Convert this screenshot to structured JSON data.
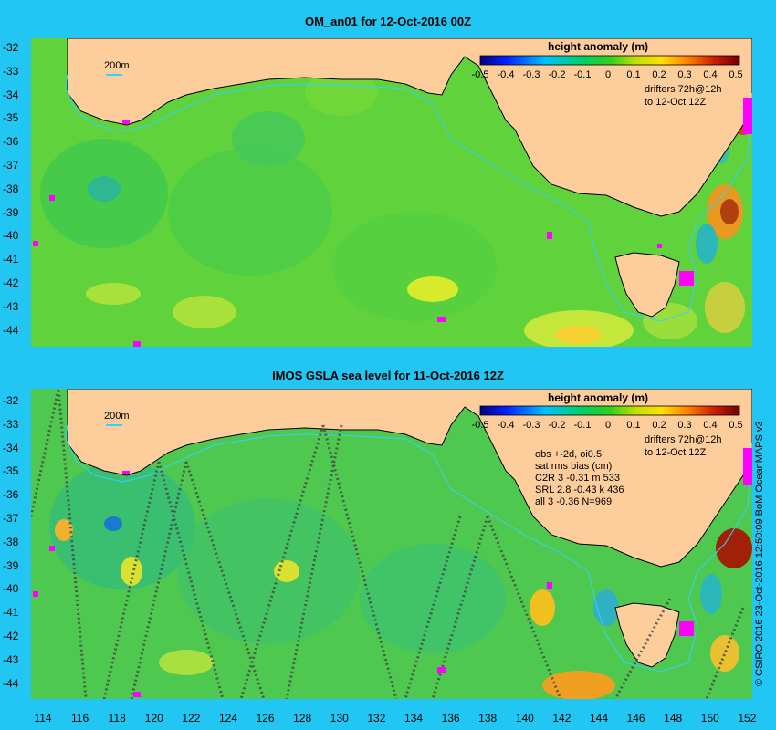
{
  "panels": [
    {
      "title": "OM_an01 for 12-Oct-2016 00Z",
      "scale_label": "200m",
      "colorbar_title": "height anomaly (m)",
      "colorbar_ticks": [
        "-0.5",
        "-0.4",
        "-0.3",
        "-0.2",
        "-0.1",
        "0",
        "0.1",
        "0.2",
        "0.3",
        "0.4",
        "0.5"
      ],
      "drifters_line1": "drifters 72h@12h",
      "drifters_line2": "to 12-Oct 12Z"
    },
    {
      "title": "IMOS GSLA sea level  for 11-Oct-2016 12Z",
      "scale_label": "200m",
      "colorbar_title": "height anomaly (m)",
      "colorbar_ticks": [
        "-0.5",
        "-0.4",
        "-0.3",
        "-0.2",
        "-0.1",
        "0",
        "0.1",
        "0.2",
        "0.3",
        "0.4",
        "0.5"
      ],
      "drifters_line1": "drifters 72h@12h",
      "drifters_line2": "to 12-Oct 12Z",
      "stats": [
        "obs +-2d, oi0.5",
        "sat rms bias (cm)",
        "C2R  3 -0.31 m 533",
        "SRL  2.8 -0.43 k 436",
        "all  3 -0.36 N=969"
      ]
    }
  ],
  "y_axis_labels": [
    "-32",
    "-33",
    "-34",
    "-35",
    "-36",
    "-37",
    "-38",
    "-39",
    "-40",
    "-41",
    "-42",
    "-43",
    "-44"
  ],
  "x_axis_labels": [
    "114",
    "116",
    "118",
    "120",
    "122",
    "124",
    "126",
    "128",
    "130",
    "132",
    "134",
    "136",
    "138",
    "140",
    "142",
    "144",
    "146",
    "148",
    "150",
    "152"
  ],
  "credit": "© CSIRO 2016  23-Oct-2016 12:50:09 BoM OceanMAPS v3",
  "colors": {
    "background": "#22c6f2",
    "land": "#fdcd9c",
    "ocean_base": "#5fd23c",
    "drifter": "#ff00ff",
    "isobath": "#36d0ff"
  }
}
